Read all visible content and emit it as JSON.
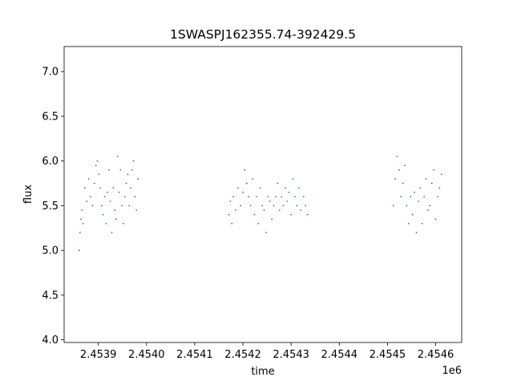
{
  "chart_data": {
    "type": "scatter",
    "title": "1SWASPJ162355.74-392429.5",
    "xlabel": "time",
    "ylabel": "flux",
    "x_offset_label": "1e6",
    "xlim": [
      2453829,
      2454654
    ],
    "ylim": [
      3.97,
      7.28
    ],
    "x_ticks": [
      2453900,
      2454000,
      2454100,
      2454200,
      2454300,
      2454400,
      2454500,
      2454600
    ],
    "x_tick_labels": [
      "2.4539",
      "2.4540",
      "2.4541",
      "2.4542",
      "2.4543",
      "2.4544",
      "2.4545",
      "2.4546"
    ],
    "y_ticks": [
      4.0,
      4.5,
      5.0,
      5.5,
      6.0,
      6.5,
      7.0
    ],
    "y_tick_labels": [
      "4.0",
      "4.5",
      "5.0",
      "5.5",
      "6.0",
      "6.5",
      "7.0"
    ],
    "grid": false,
    "marker_color": "#1f77b4",
    "series": [
      {
        "x": [
          2453860,
          2453862,
          2453864,
          2453866,
          2453868,
          2453872,
          2453876,
          2453880,
          2453884,
          2453888,
          2453892,
          2453895,
          2453898,
          2453901,
          2453904,
          2453907,
          2453910,
          2453913,
          2453916,
          2453919,
          2453922,
          2453925,
          2453928,
          2453931,
          2453934,
          2453937,
          2453940,
          2453943,
          2453946,
          2453949,
          2453952,
          2453955,
          2453958,
          2453961,
          2453964,
          2453967,
          2453970,
          2453973,
          2453976,
          2453979,
          2453982
        ],
        "y": [
          5.0,
          5.2,
          5.35,
          5.45,
          5.3,
          5.7,
          5.55,
          5.8,
          5.6,
          5.5,
          5.75,
          5.95,
          6.0,
          5.85,
          5.7,
          5.5,
          5.4,
          5.6,
          5.3,
          5.65,
          5.9,
          5.55,
          5.2,
          5.7,
          5.45,
          5.35,
          6.05,
          5.65,
          5.9,
          5.5,
          5.3,
          5.6,
          5.75,
          5.85,
          5.5,
          5.7,
          5.9,
          6.0,
          5.6,
          5.45,
          5.8
        ]
      },
      {
        "x": [
          2454171,
          2454174,
          2454177,
          2454180,
          2454185,
          2454190,
          2454195,
          2454200,
          2454204,
          2454208,
          2454212,
          2454216,
          2454220,
          2454224,
          2454228,
          2454232,
          2454236,
          2454240,
          2454244,
          2454248,
          2454252,
          2454256,
          2454260,
          2454264,
          2454268,
          2454272,
          2454276,
          2454280,
          2454284,
          2454288,
          2454292,
          2454296,
          2454300,
          2454304,
          2454308,
          2454312,
          2454316,
          2454320,
          2454326,
          2454330,
          2454334
        ],
        "y": [
          5.4,
          5.55,
          5.3,
          5.6,
          5.45,
          5.7,
          5.5,
          5.65,
          5.9,
          5.75,
          5.6,
          5.5,
          5.8,
          5.4,
          5.6,
          5.3,
          5.7,
          5.5,
          5.45,
          5.2,
          5.6,
          5.55,
          5.35,
          5.5,
          5.6,
          5.75,
          5.45,
          5.6,
          5.5,
          5.7,
          5.55,
          5.65,
          5.4,
          5.8,
          5.6,
          5.5,
          5.7,
          5.45,
          5.6,
          5.5,
          5.4
        ]
      },
      {
        "x": [
          2454512,
          2454516,
          2454520,
          2454524,
          2454528,
          2454532,
          2454536,
          2454540,
          2454544,
          2454548,
          2454552,
          2454556,
          2454560,
          2454564,
          2454568,
          2454572,
          2454576,
          2454580,
          2454584,
          2454588,
          2454592,
          2454596,
          2454600,
          2454604,
          2454608,
          2454612
        ],
        "y": [
          5.5,
          5.8,
          6.05,
          5.9,
          5.6,
          5.75,
          5.95,
          5.5,
          5.3,
          5.6,
          5.4,
          5.65,
          5.2,
          5.55,
          5.7,
          5.3,
          5.6,
          5.8,
          5.45,
          5.5,
          5.75,
          5.9,
          5.35,
          5.6,
          5.7,
          5.85
        ]
      }
    ]
  }
}
